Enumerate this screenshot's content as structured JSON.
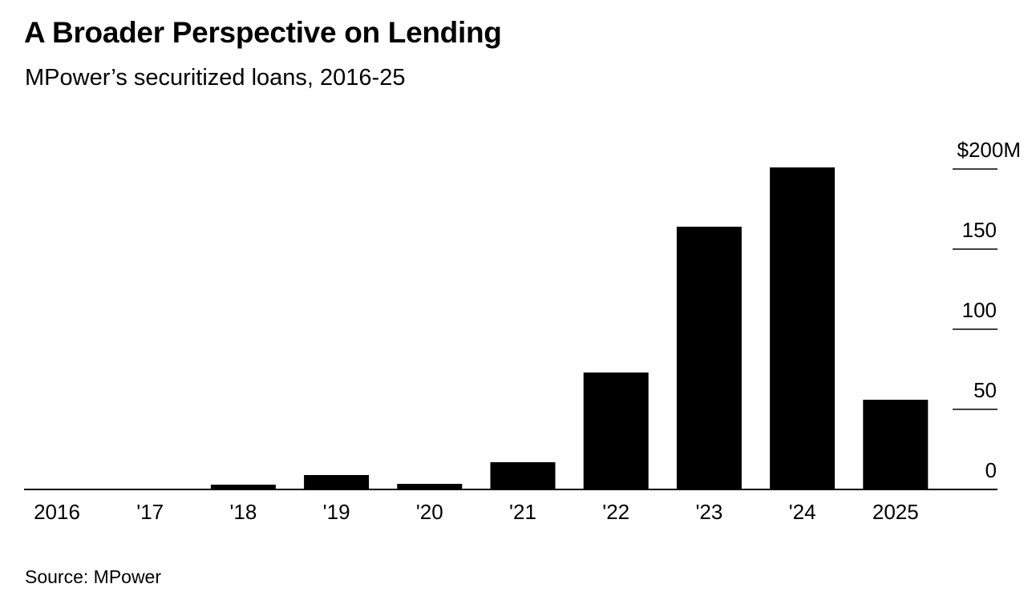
{
  "title": "A Broader Perspective on Lending",
  "subtitle": "MPower’s securitized loans, 2016-25",
  "source": "Source: MPower",
  "chart_data": {
    "type": "bar",
    "categories": [
      "2016",
      "'17",
      "'18",
      "'19",
      "'20",
      "'21",
      "'22",
      "'23",
      "'24",
      "2025"
    ],
    "values": [
      0.5,
      0.5,
      3,
      9,
      3.5,
      17,
      73,
      164,
      201,
      56
    ],
    "ylim": [
      0,
      200
    ],
    "yticks": [
      0,
      50,
      100,
      150,
      200
    ],
    "ytick_labels": [
      "0",
      "50",
      "100",
      "150",
      "$200M"
    ],
    "axis_position": "right",
    "grid": false,
    "bar_color": "#000000"
  }
}
